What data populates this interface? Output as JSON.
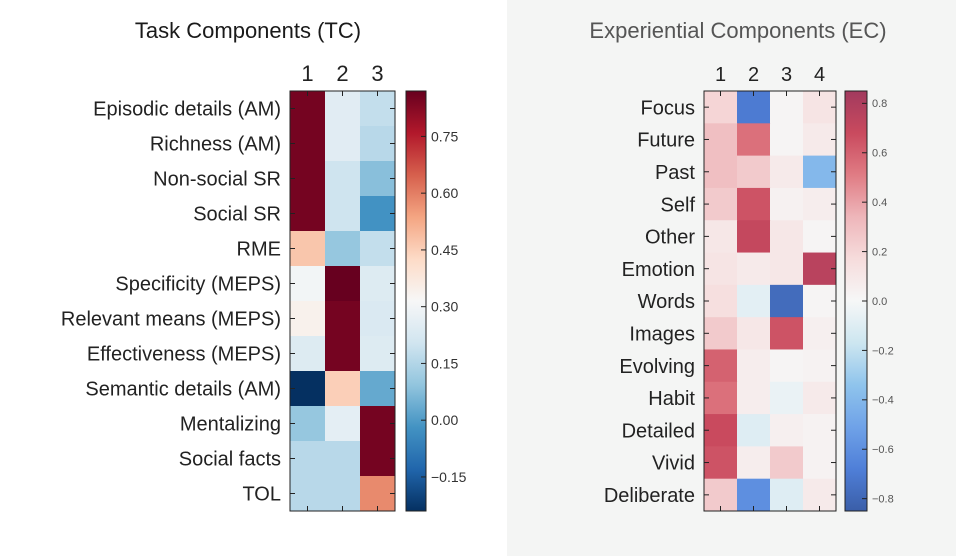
{
  "chart_data": [
    {
      "type": "heatmap",
      "title": "Task Components (TC)",
      "columns": [
        "1",
        "2",
        "3"
      ],
      "rows": [
        "Episodic details (AM)",
        "Richness (AM)",
        "Non-social SR",
        "Social SR",
        "RME",
        "Specificity (MEPS)",
        "Relevant means (MEPS)",
        "Effectiveness (MEPS)",
        "Semantic details (AM)",
        "Mentalizing",
        "Social facts",
        "TOL"
      ],
      "values": [
        [
          0.85,
          0.25,
          0.18
        ],
        [
          0.85,
          0.25,
          0.16
        ],
        [
          0.85,
          0.2,
          0.08
        ],
        [
          0.85,
          0.2,
          -0.02
        ],
        [
          0.47,
          0.1,
          0.18
        ],
        [
          0.3,
          0.87,
          0.24
        ],
        [
          0.34,
          0.85,
          0.23
        ],
        [
          0.24,
          0.85,
          0.24
        ],
        [
          -0.24,
          0.45,
          0.03
        ],
        [
          0.1,
          0.26,
          0.85
        ],
        [
          0.16,
          0.16,
          0.85
        ],
        [
          0.16,
          0.16,
          0.58
        ]
      ],
      "colorbar": {
        "range": [
          -0.24,
          0.87
        ],
        "ticks": [
          "0.75",
          "0.60",
          "0.45",
          "0.30",
          "0.15",
          "0.00",
          "−0.15"
        ],
        "tick_values": [
          0.75,
          0.6,
          0.45,
          0.3,
          0.15,
          0.0,
          -0.15
        ]
      },
      "colormap": [
        "#053061",
        "#2166ac",
        "#4393c3",
        "#92c5de",
        "#d1e5f0",
        "#f7f7f7",
        "#fddbc7",
        "#f4a582",
        "#d6604d",
        "#b2182b",
        "#67001f"
      ]
    },
    {
      "type": "heatmap",
      "title": "Experiential Components (EC)",
      "columns": [
        "1",
        "2",
        "3",
        "4"
      ],
      "rows": [
        "Focus",
        "Future",
        "Past",
        "Self",
        "Other",
        "Emotion",
        "Words",
        "Images",
        "Evolving",
        "Habit",
        "Detailed",
        "Vivid",
        "Deliberate"
      ],
      "values": [
        [
          0.2,
          -0.7,
          0.02,
          0.12
        ],
        [
          0.3,
          0.55,
          0.02,
          0.08
        ],
        [
          0.3,
          0.25,
          0.08,
          -0.4
        ],
        [
          0.25,
          0.65,
          0.04,
          0.06
        ],
        [
          0.1,
          0.7,
          0.1,
          0.02
        ],
        [
          0.12,
          0.08,
          0.1,
          0.75
        ],
        [
          0.15,
          -0.08,
          -0.78,
          0.02
        ],
        [
          0.25,
          0.1,
          0.65,
          0.05
        ],
        [
          0.6,
          0.06,
          0.02,
          0.03
        ],
        [
          0.55,
          0.06,
          -0.05,
          0.08
        ],
        [
          0.68,
          -0.1,
          0.05,
          0.03
        ],
        [
          0.65,
          0.06,
          0.25,
          0.03
        ],
        [
          0.25,
          -0.6,
          -0.1,
          0.08
        ]
      ],
      "colorbar": {
        "range": [
          -0.85,
          0.85
        ],
        "ticks": [
          "0.8",
          "0.6",
          "0.4",
          "0.2",
          "0.0",
          "−0.2",
          "−0.4",
          "−0.6",
          "−0.8"
        ],
        "tick_values": [
          0.8,
          0.6,
          0.4,
          0.2,
          0.0,
          -0.2,
          -0.4,
          -0.6,
          -0.8
        ]
      },
      "colormap": [
        "#3a5ea8",
        "#4f7fd8",
        "#6fa2e8",
        "#8fc4ec",
        "#cde6f0",
        "#f6f7f7",
        "#f6dcdc",
        "#eeb6ba",
        "#e07c84",
        "#c94a5e",
        "#a23a5e"
      ]
    }
  ]
}
